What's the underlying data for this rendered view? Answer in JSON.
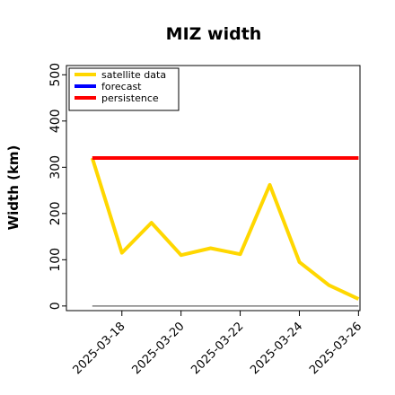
{
  "chart_data": {
    "type": "line",
    "title": "MIZ width",
    "xlabel": "",
    "ylabel": "Width (km)",
    "x_dates": [
      "2025-03-17",
      "2025-03-18",
      "2025-03-19",
      "2025-03-20",
      "2025-03-21",
      "2025-03-22",
      "2025-03-23",
      "2025-03-24",
      "2025-03-25",
      "2025-03-26"
    ],
    "ylim": [
      -10,
      520
    ],
    "yticks": [
      0,
      100,
      200,
      300,
      400,
      500
    ],
    "xticks": [
      {
        "date": "2025-03-18",
        "label": "2025-03-18",
        "color": "#228B22"
      },
      {
        "date": "2025-03-20",
        "label": "2025-03-20",
        "color": "#000000"
      },
      {
        "date": "2025-03-22",
        "label": "2025-03-22",
        "color": "#000000"
      },
      {
        "date": "2025-03-24",
        "label": "2025-03-24",
        "color": "#000000"
      },
      {
        "date": "2025-03-26",
        "label": "2025-03-26",
        "color": "#000000"
      }
    ],
    "grid": false,
    "legend_position": "top-left",
    "series": [
      {
        "name": "satellite data",
        "color": "#FFD700",
        "values": [
          320,
          115,
          180,
          110,
          125,
          112,
          262,
          95,
          45,
          15
        ]
      },
      {
        "name": "forecast",
        "color": "#0000FF",
        "values": []
      },
      {
        "name": "persistence",
        "color": "#FF0000",
        "values": [
          320,
          320,
          320,
          320,
          320,
          320,
          320,
          320,
          320,
          320
        ]
      }
    ],
    "reference_line": {
      "value": 0,
      "color": "#808080"
    }
  }
}
